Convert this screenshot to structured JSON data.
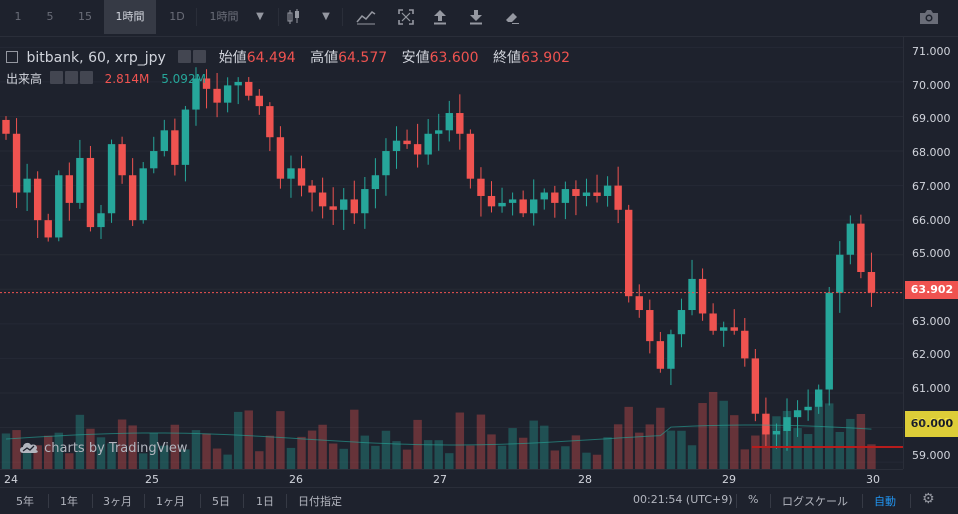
{
  "toolbar": {
    "intervals": [
      "1",
      "5",
      "15",
      "1時間",
      "1D"
    ],
    "active_interval": "1時間",
    "interval_dropdown": "1時間",
    "icons": [
      "candle-style-icon",
      "chevron-down-icon",
      "indicators-icon",
      "fullscreen-icon",
      "upload-icon",
      "download-icon",
      "eraser-icon",
      "camera-icon"
    ]
  },
  "legend": {
    "symbol": "bitbank, 60, xrp_jpy",
    "open_label": "始値",
    "open_value": "64.494",
    "high_label": "高値",
    "high_value": "64.577",
    "low_label": "安値",
    "low_value": "63.600",
    "close_label": "終値",
    "close_value": "63.902"
  },
  "volume_legend": {
    "label": "出来高",
    "value1": "2.814M",
    "value2": "5.092M"
  },
  "watermark": "charts by TradingView",
  "price_axis": {
    "ticks": [
      "71.000",
      "70.000",
      "69.000",
      "68.000",
      "67.000",
      "66.000",
      "65.000",
      "64.000",
      "63.000",
      "62.000",
      "61.000",
      "60.000",
      "59.000"
    ],
    "current_price": "63.902",
    "marker_price": "60.000"
  },
  "time_axis": {
    "labels": [
      "24",
      "25",
      "26",
      "27",
      "28",
      "29",
      "30"
    ]
  },
  "bottom_bar": {
    "ranges": [
      "5年",
      "1年",
      "3ヶ月",
      "1ヶ月",
      "5日",
      "1日"
    ],
    "goto_date": "日付指定",
    "clock": "00:21:54 (UTC+9)",
    "percent": "%",
    "log_scale": "ログスケール",
    "auto": "自動"
  },
  "colors": {
    "up": "#26a69a",
    "down": "#ef5350",
    "background": "#1e222d",
    "grid": "#2a2e39",
    "marker_badge": "#ffeb3b"
  },
  "chart_data": {
    "type": "candlestick",
    "title": "bitbank, 60, xrp_jpy",
    "interval": "60",
    "ylim": [
      58.8,
      71.3
    ],
    "last_bar": {
      "open": 64.494,
      "high": 64.577,
      "low": 63.6,
      "close": 63.902
    },
    "x_labels": [
      "24",
      "25",
      "26",
      "27",
      "28",
      "29",
      "30"
    ],
    "volume_series": {
      "name": "出来高",
      "values_shown": [
        "2.814M",
        "5.092M"
      ]
    },
    "close_series_approx": [
      68.5,
      66.8,
      67.2,
      66.0,
      65.5,
      67.3,
      66.5,
      67.8,
      65.8,
      66.2,
      68.2,
      67.3,
      66.0,
      67.5,
      68.0,
      68.6,
      67.6,
      69.2,
      70.1,
      69.8,
      69.4,
      69.9,
      70.0,
      69.6,
      69.3,
      68.4,
      67.2,
      67.5,
      67.0,
      66.8,
      66.4,
      66.3,
      66.6,
      66.2,
      66.9,
      67.3,
      68.0,
      68.3,
      68.2,
      67.9,
      68.5,
      68.6,
      69.1,
      68.5,
      67.2,
      66.7,
      66.4,
      66.5,
      66.6,
      66.2,
      66.6,
      66.8,
      66.5,
      66.9,
      66.7,
      66.8,
      66.7,
      67.0,
      66.3,
      63.8,
      63.4,
      62.5,
      61.7,
      62.7,
      63.4,
      64.3,
      63.3,
      62.8,
      62.9,
      62.8,
      62.0,
      60.4,
      59.8,
      59.9,
      60.3,
      60.5,
      60.6,
      61.1,
      63.9,
      65.0,
      65.9,
      64.5,
      63.9
    ]
  }
}
